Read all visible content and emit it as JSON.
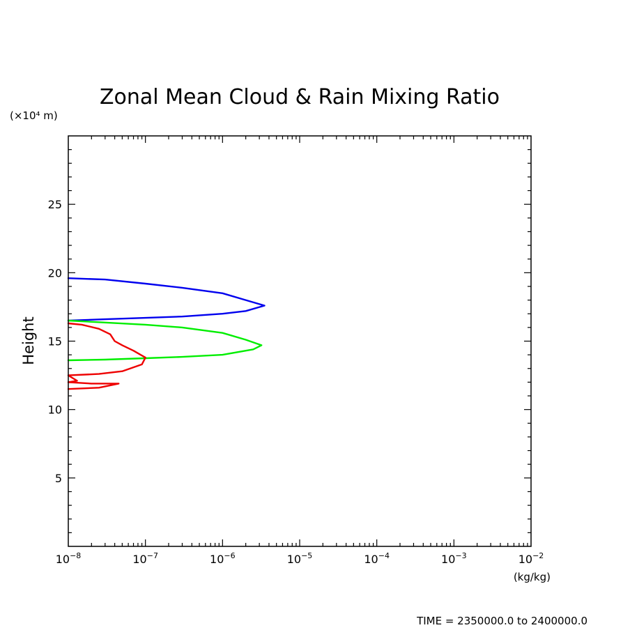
{
  "chart_data": {
    "type": "line",
    "title": "Zonal Mean Cloud & Rain Mixing Ratio",
    "ylabel": "Height",
    "yunit": "(×10⁴ m)",
    "xunit": "(kg/kg)",
    "xscale": "log",
    "xlim": [
      1e-08,
      0.01
    ],
    "ylim": [
      0,
      30
    ],
    "ytick_values": [
      5,
      10,
      15,
      20,
      25
    ],
    "ytick_labels": [
      "5",
      "10",
      "15",
      "20",
      "25"
    ],
    "xtick_values": [
      1e-08,
      1e-07,
      1e-06,
      1e-05,
      0.0001,
      0.001,
      0.01
    ],
    "xtick_labels": [
      {
        "base": "10",
        "exp": "−8"
      },
      {
        "base": "10",
        "exp": "−7"
      },
      {
        "base": "10",
        "exp": "−6"
      },
      {
        "base": "10",
        "exp": "−5"
      },
      {
        "base": "10",
        "exp": "−4"
      },
      {
        "base": "10",
        "exp": "−3"
      },
      {
        "base": "10",
        "exp": "−2"
      }
    ],
    "footer": "TIME = 2350000.0 to 2400000.0",
    "series": [
      {
        "color": "#0000ee",
        "points": [
          [
            1e-08,
            19.6
          ],
          [
            3e-08,
            19.5
          ],
          [
            1e-07,
            19.2
          ],
          [
            3e-07,
            18.9
          ],
          [
            1e-06,
            18.5
          ],
          [
            2e-06,
            18.0
          ],
          [
            3.5e-06,
            17.6
          ],
          [
            2e-06,
            17.2
          ],
          [
            1e-06,
            17.0
          ],
          [
            3e-07,
            16.8
          ],
          [
            1e-07,
            16.7
          ],
          [
            3e-08,
            16.6
          ],
          [
            1e-08,
            16.5
          ]
        ]
      },
      {
        "color": "#00ee00",
        "points": [
          [
            1e-08,
            16.5
          ],
          [
            1e-07,
            16.2
          ],
          [
            3e-07,
            16.0
          ],
          [
            1e-06,
            15.6
          ],
          [
            2e-06,
            15.1
          ],
          [
            3.2e-06,
            14.7
          ],
          [
            2.5e-06,
            14.4
          ],
          [
            1e-06,
            14.0
          ],
          [
            3e-07,
            13.85
          ],
          [
            1e-07,
            13.75
          ],
          [
            3e-08,
            13.65
          ],
          [
            1e-08,
            13.6
          ]
        ]
      },
      {
        "color": "#ee0000",
        "points": [
          [
            1e-08,
            16.3
          ],
          [
            1.5e-08,
            16.2
          ],
          [
            2.5e-08,
            15.9
          ],
          [
            3.5e-08,
            15.5
          ],
          [
            4e-08,
            15.0
          ],
          [
            5e-08,
            14.7
          ],
          [
            7e-08,
            14.3
          ],
          [
            1e-07,
            13.8
          ],
          [
            9e-08,
            13.3
          ],
          [
            5e-08,
            12.8
          ],
          [
            2.5e-08,
            12.6
          ],
          [
            1e-08,
            12.5
          ],
          [
            1.3e-08,
            12.1
          ],
          [
            1e-08,
            12.0
          ],
          [
            2e-08,
            11.9
          ],
          [
            4.5e-08,
            11.9
          ],
          [
            2.5e-08,
            11.6
          ],
          [
            1e-08,
            11.5
          ]
        ]
      }
    ]
  }
}
